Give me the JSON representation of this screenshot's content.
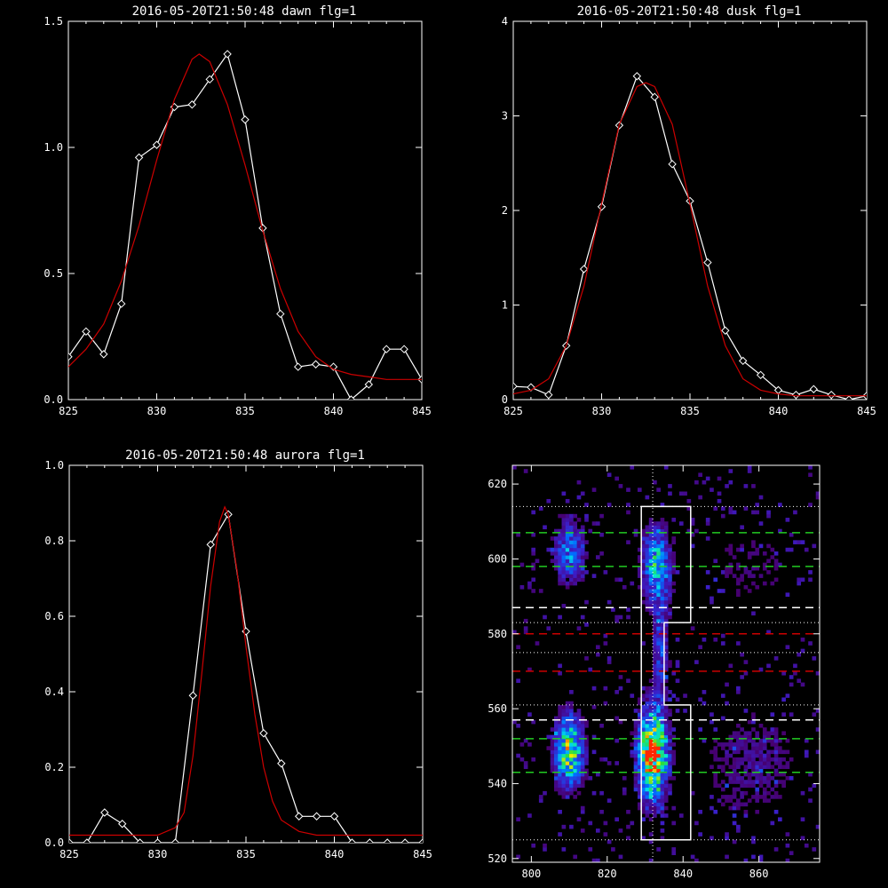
{
  "colors": {
    "background": "#000000",
    "axes": "#ffffff",
    "data_line": "#ffffff",
    "fit_line": "#cc0000",
    "green_dash": "#22cc22",
    "red_dash": "#cc0000",
    "white_dash": "#ffffff",
    "dotted": "#ffffff"
  },
  "chart_data": [
    {
      "id": "dawn",
      "type": "line",
      "title": "2016-05-20T21:50:48 dawn flg=1",
      "xlim": [
        825,
        845
      ],
      "ylim": [
        0,
        1.5
      ],
      "xticks": [
        825,
        830,
        835,
        840,
        845
      ],
      "xtick_labels": [
        "825",
        "830",
        "835",
        "840",
        "845"
      ],
      "yticks": [
        0,
        0.5,
        1.0,
        1.5
      ],
      "ytick_labels": [
        "0.0",
        "0.5",
        "1.0",
        "1.5"
      ],
      "series": [
        {
          "style": "data",
          "marker": "diamond",
          "x": [
            825,
            826,
            827,
            828,
            829,
            830,
            831,
            832,
            833,
            834,
            835,
            836,
            837,
            838,
            839,
            840,
            841,
            842,
            843,
            844,
            845
          ],
          "y": [
            0.17,
            0.27,
            0.18,
            0.38,
            0.96,
            1.01,
            1.16,
            1.17,
            1.27,
            1.37,
            1.11,
            0.68,
            0.34,
            0.13,
            0.14,
            0.13,
            0.0,
            0.06,
            0.2,
            0.2,
            0.08
          ]
        },
        {
          "style": "fit",
          "x": [
            825,
            826,
            827,
            828,
            829,
            830,
            831,
            832,
            832.4,
            833,
            834,
            835,
            836,
            837,
            838,
            839,
            840,
            841,
            842,
            843,
            844,
            845
          ],
          "y": [
            0.13,
            0.2,
            0.3,
            0.47,
            0.69,
            0.95,
            1.19,
            1.35,
            1.37,
            1.34,
            1.17,
            0.93,
            0.67,
            0.44,
            0.27,
            0.17,
            0.12,
            0.1,
            0.09,
            0.08,
            0.08,
            0.08
          ]
        }
      ]
    },
    {
      "id": "dusk",
      "type": "line",
      "title": "2016-05-20T21:50:48 dusk flg=1",
      "xlim": [
        825,
        845
      ],
      "ylim": [
        0,
        4
      ],
      "xticks": [
        825,
        830,
        835,
        840,
        845
      ],
      "xtick_labels": [
        "825",
        "830",
        "835",
        "840",
        "845"
      ],
      "yticks": [
        0,
        1,
        2,
        3,
        4
      ],
      "ytick_labels": [
        "0",
        "1",
        "2",
        "3",
        "4"
      ],
      "series": [
        {
          "style": "data",
          "marker": "diamond",
          "x": [
            825,
            826,
            827,
            828,
            829,
            830,
            831,
            832,
            833,
            834,
            835,
            836,
            837,
            838,
            839,
            840,
            841,
            842,
            843,
            844,
            845
          ],
          "y": [
            0.14,
            0.13,
            0.05,
            0.57,
            1.38,
            2.04,
            2.9,
            3.42,
            3.2,
            2.49,
            2.1,
            1.45,
            0.73,
            0.41,
            0.26,
            0.1,
            0.05,
            0.11,
            0.05,
            0.0,
            0.04
          ]
        },
        {
          "style": "fit",
          "x": [
            825,
            826,
            827,
            828,
            829,
            830,
            831,
            832,
            832.5,
            833,
            834,
            835,
            836,
            837,
            838,
            839,
            840,
            841,
            842,
            843,
            844,
            845
          ],
          "y": [
            0.06,
            0.1,
            0.22,
            0.57,
            1.2,
            2.07,
            2.91,
            3.31,
            3.35,
            3.31,
            2.91,
            2.07,
            1.2,
            0.57,
            0.22,
            0.1,
            0.06,
            0.04,
            0.04,
            0.04,
            0.04,
            0.04
          ]
        }
      ]
    },
    {
      "id": "aurora",
      "type": "line",
      "title": "2016-05-20T21:50:48 aurora flg=1",
      "xlim": [
        825,
        845
      ],
      "ylim": [
        0,
        1.0
      ],
      "xticks": [
        825,
        830,
        835,
        840,
        845
      ],
      "xtick_labels": [
        "825",
        "830",
        "835",
        "840",
        "845"
      ],
      "yticks": [
        0,
        0.2,
        0.4,
        0.6,
        0.8,
        1.0
      ],
      "ytick_labels": [
        "0.0",
        "0.2",
        "0.4",
        "0.6",
        "0.8",
        "1.0"
      ],
      "series": [
        {
          "style": "data",
          "marker": "diamond",
          "x": [
            825,
            826,
            827,
            828,
            829,
            830,
            831,
            832,
            833,
            834,
            835,
            836,
            837,
            838,
            839,
            840,
            841,
            842,
            843,
            844,
            845
          ],
          "y": [
            0.0,
            0.0,
            0.08,
            0.05,
            0.0,
            0.0,
            0.0,
            0.39,
            0.79,
            0.87,
            0.56,
            0.29,
            0.21,
            0.07,
            0.07,
            0.07,
            0.0,
            0.0,
            0.0,
            0.0,
            0.0
          ]
        },
        {
          "style": "fit",
          "x": [
            825,
            828,
            830,
            831,
            831.5,
            832,
            832.5,
            833,
            833.5,
            833.8,
            834,
            834.5,
            835,
            835.5,
            836,
            836.5,
            837,
            838,
            839,
            845
          ],
          "y": [
            0.02,
            0.02,
            0.02,
            0.04,
            0.08,
            0.23,
            0.45,
            0.68,
            0.85,
            0.89,
            0.87,
            0.72,
            0.52,
            0.34,
            0.2,
            0.11,
            0.06,
            0.03,
            0.02,
            0.02
          ]
        }
      ]
    },
    {
      "id": "image",
      "type": "heatmap",
      "title": "",
      "xlim": [
        795,
        876
      ],
      "ylim": [
        519,
        625
      ],
      "xticks": [
        800,
        820,
        840,
        860
      ],
      "xtick_labels": [
        "800",
        "820",
        "840",
        "860"
      ],
      "yticks": [
        520,
        540,
        560,
        580,
        600,
        620
      ],
      "ytick_labels": [
        "520",
        "540",
        "560",
        "580",
        "600",
        "620"
      ],
      "clusters": [
        {
          "x": 832,
          "y": 548,
          "sx": 2.6,
          "sy": 8,
          "peak": 1.0
        },
        {
          "x": 833,
          "y": 598,
          "sx": 2.6,
          "sy": 7,
          "peak": 0.55
        },
        {
          "x": 810,
          "y": 549,
          "sx": 2.6,
          "sy": 6.5,
          "peak": 0.72
        },
        {
          "x": 810,
          "y": 602,
          "sx": 2.8,
          "sy": 6,
          "peak": 0.4
        },
        {
          "x": 834,
          "y": 575,
          "sx": 1.5,
          "sy": 9,
          "peak": 0.3
        },
        {
          "x": 858,
          "y": 545,
          "sx": 10,
          "sy": 12,
          "peak": 0.14
        },
        {
          "x": 858,
          "y": 598,
          "sx": 10,
          "sy": 10,
          "peak": 0.1
        }
      ],
      "background_level": 0.05,
      "boxes": [
        [
          [
            829,
            583
          ],
          [
            829,
            614
          ],
          [
            842,
            614
          ],
          [
            842,
            583
          ],
          [
            835,
            583
          ],
          [
            835,
            561
          ],
          [
            842,
            561
          ],
          [
            842,
            525
          ],
          [
            829,
            525
          ],
          [
            829,
            583
          ]
        ]
      ],
      "vertical_line_x": 832,
      "dotted_h": [
        614,
        583,
        575,
        561,
        525
      ],
      "green_dash_h": [
        607,
        598,
        552,
        543
      ],
      "white_dash_h": [
        587,
        557
      ],
      "red_dash_h": [
        580,
        570
      ]
    }
  ]
}
